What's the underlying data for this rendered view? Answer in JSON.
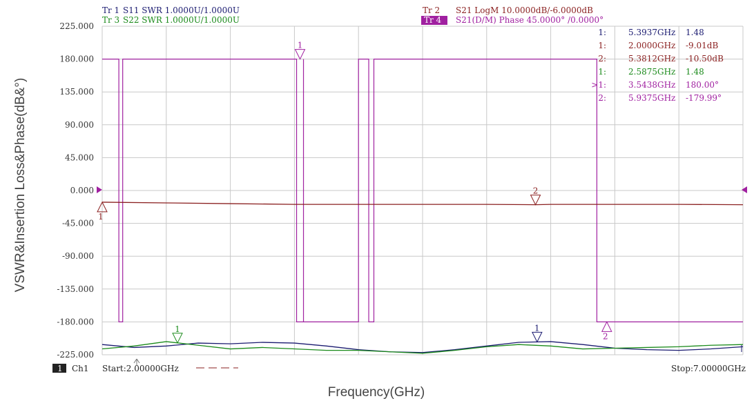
{
  "axes": {
    "ylabel": "VSWR&Insertion Loss&Phase(dB&°)",
    "xlabel": "Frequency(GHz)"
  },
  "traces_header": {
    "tr1": {
      "id": "Tr 1",
      "desc": "S11 SWR 1.0000U/1.0000U"
    },
    "tr3": {
      "id": "Tr 3",
      "desc": "S22 SWR 1.0000U/1.0000U"
    },
    "tr2": {
      "id": "Tr 2",
      "desc": "S21 LogM 10.0000dB/-6.0000dB"
    },
    "tr4": {
      "id": "Tr 4",
      "desc": "S21(D/M) Phase 45.0000° /0.0000°"
    }
  },
  "markers_table": [
    {
      "id": "1:",
      "freq": "5.3937GHz",
      "value": "1.48",
      "color": "#1a1a70"
    },
    {
      "id": "1:",
      "freq": "2.0000GHz",
      "value": "-9.01dB",
      "color": "#8a1f1f"
    },
    {
      "id": "2:",
      "freq": "5.3812GHz",
      "value": "-10.50dB",
      "color": "#8a1f1f"
    },
    {
      "id": "1:",
      "freq": "2.5875GHz",
      "value": "1.48",
      "color": "#1a8a1a"
    },
    {
      "id": ">1:",
      "freq": "3.5438GHz",
      "value": "180.00°",
      "color": "#a020a0"
    },
    {
      "id": "2:",
      "freq": "5.9375GHz",
      "value": "-179.99°",
      "color": "#a020a0"
    }
  ],
  "footer": {
    "channel_badge": "1",
    "channel": "Ch1",
    "start": "Start:2.00000GHz",
    "stop": "Stop:7.00000GHz"
  },
  "chart_data": {
    "type": "line",
    "xlim": [
      2.0,
      7.0
    ],
    "ylim": [
      -225,
      225
    ],
    "yticks": [
      225,
      180,
      135,
      90,
      45,
      0,
      -45,
      -90,
      -135,
      -180,
      -225
    ],
    "ytick_labels": [
      "225.000",
      "180.000",
      "135.000",
      "90.000",
      "45.000",
      "0.000",
      "-45.000",
      "-90.000",
      "-135.000",
      "-180.000",
      "-225.000"
    ],
    "grid": true,
    "colors": {
      "tr1": "#1a1a70",
      "tr2": "#8a1f1f",
      "tr3": "#1a8a1a",
      "tr4": "#a020a0",
      "grid": "#c8c8c8",
      "ref": "#a020a0"
    },
    "series": [
      {
        "x": [
          2.0,
          3.5438,
          6.3
        ],
        "y": [
          180.0,
          180.0,
          -179.99
        ],
        "markers": [
          {
            "label": "1",
            "x": 3.5438
          },
          {
            "label": "2",
            "x": 5.9375
          }
        ]
      },
      {
        "x": [
          2.0,
          2.5,
          3.0,
          3.5,
          4.0,
          4.5,
          5.0,
          5.3812,
          5.5,
          6.0,
          6.5,
          7.0
        ],
        "y": [
          -16,
          -17,
          -18,
          -19,
          -19,
          -19,
          -19,
          -19.5,
          -19,
          -19,
          -19,
          -19.5
        ],
        "markers": [
          {
            "label": "1",
            "x": 2.0
          },
          {
            "label": "2",
            "x": 5.3812
          }
        ]
      },
      {
        "x": [
          2.0,
          2.25,
          2.5,
          2.75,
          3.0,
          3.25,
          3.5,
          3.75,
          4.0,
          4.25,
          4.5,
          4.75,
          5.0,
          5.25,
          5.5,
          5.75,
          6.0,
          6.25,
          6.5,
          6.75,
          7.0
        ],
        "y": [
          -211,
          -215,
          -213,
          -209,
          -210,
          -208,
          -209,
          -213,
          -218,
          -221,
          -222,
          -218,
          -213,
          -208,
          -207,
          -211,
          -216,
          -218,
          -219,
          -217,
          -214
        ],
        "markers": [
          {
            "label": "1",
            "x": 5.3937
          }
        ]
      },
      {
        "x": [
          2.0,
          2.25,
          2.5,
          2.75,
          3.0,
          3.25,
          3.5,
          3.75,
          4.0,
          4.25,
          4.5,
          4.75,
          5.0,
          5.25,
          5.5,
          5.75,
          6.0,
          6.25,
          6.5,
          6.75,
          7.0
        ],
        "y": [
          -217,
          -213,
          -207,
          -212,
          -217,
          -215,
          -217,
          -219,
          -219,
          -221,
          -223,
          -219,
          -214,
          -211,
          -213,
          -217,
          -216,
          -215,
          -214,
          -212,
          -211
        ],
        "markers": [
          {
            "label": "1",
            "x": 2.5875
          }
        ]
      }
    ]
  }
}
